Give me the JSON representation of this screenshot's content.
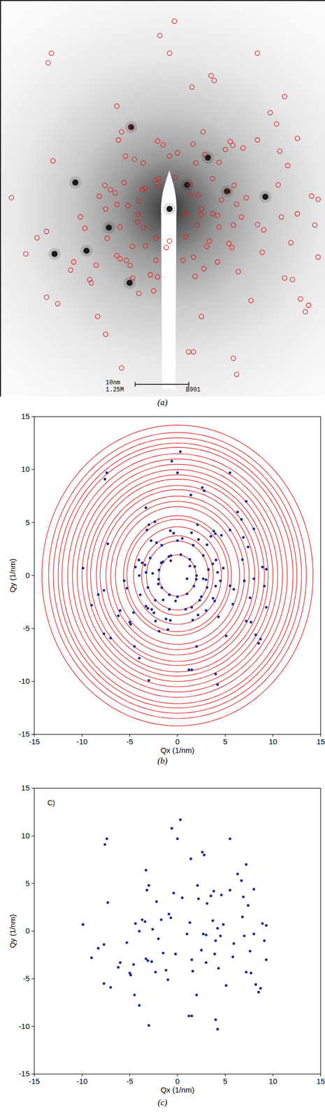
{
  "chart_data": [
    {
      "type": "image",
      "caption": "(a)",
      "marker": "open circle",
      "color": "#e02020",
      "tick_labels": false,
      "grid": false,
      "xlim": [
        -10.6,
        9.75
      ],
      "ylim": [
        -11.7,
        13.0
      ],
      "annotations": [
        "10nm",
        "1.25M",
        "B901"
      ],
      "spots": {
        "x": [
          0,
          -5.9,
          -2.4,
          2.4,
          3.6,
          6.0,
          -3.8,
          -5.2,
          -7.2,
          -2.5,
          1.1
        ],
        "y": [
          0,
          1.65,
          5.1,
          3.2,
          1.1,
          0.76,
          -1.16,
          -2.6,
          -2.8,
          -4.6,
          1.5
        ]
      },
      "x": [
        2,
        1.81,
        1.29,
        0.35,
        -0.68,
        -1.53,
        -1.93,
        -1.97,
        -1.64,
        -0.85,
        0,
        1.0,
        1.73,
        1.97,
        3.25,
        2.7,
        1.65,
        0,
        -1.65,
        -2.86,
        -3.29,
        -3.1,
        -2.33,
        -0.85,
        0.85,
        2.33,
        3.1,
        4.04,
        1.47,
        -0.75,
        -2.76,
        -4.04,
        -3.9,
        -2.47,
        -0.75,
        2.15,
        3.72,
        3.96,
        -2.37,
        -5.58,
        -1.92,
        5.51,
        -9.9,
        -9.0,
        -8.3,
        -7.7,
        -7.6,
        -7.4,
        -7.3,
        -7.0,
        -7.7,
        -6.2,
        -6.0,
        -5.3,
        -5.0,
        -4.9,
        -4.6,
        -4.5,
        -4.0,
        -4.4,
        -4.0,
        -3.7,
        -3.4,
        -3.3,
        -3.2,
        -3.0,
        -3.1,
        -3.3,
        -3.0,
        -2.7,
        -2.6,
        -2.3,
        -2.2,
        -2.0,
        -1.7,
        -1.2,
        -1.5,
        -1.0,
        -0.9,
        -0.7,
        -0.6,
        -0.4,
        0.0,
        0.3,
        0.5,
        -0.2,
        1.2,
        1.5,
        1.0,
        1.5,
        1.4,
        1.3,
        1.6,
        2.0,
        2.2,
        2.1,
        2.6,
        2.8,
        2.7,
        2.5,
        3.0,
        3.1,
        3.0,
        3.5,
        3.8,
        3.7,
        4.0,
        3.9,
        4.0,
        4.2,
        4.6,
        4.2,
        4.3,
        4.5,
        4.8,
        5.1,
        5.5,
        5.5,
        5.8,
        5.9,
        6.3,
        6.7,
        6.8,
        6.9,
        7.0,
        7.2,
        7.4,
        7.2,
        7.7,
        7.6,
        8.0,
        8.0,
        8.2,
        8.5,
        8.7,
        8.9,
        9.3,
        9.1,
        9.3
      ],
      "y": [
        0,
        0.85,
        1.53,
        1.97,
        1.88,
        1.29,
        0.52,
        -0.35,
        -1.15,
        -1.81,
        -2,
        -1.73,
        -1.0,
        -0.35,
        0.57,
        1.89,
        2.86,
        3.3,
        2.86,
        1.65,
        0.29,
        -1.13,
        -2.33,
        -3.19,
        -3.19,
        -2.33,
        -1.13,
        1.47,
        4.04,
        4.23,
        3.29,
        1.47,
        -1.82,
        -3.52,
        -4.23,
        -3.72,
        -2.15,
        3.96,
        5.08,
        -0.49,
        -5.26,
        -0.97,
        0.7,
        -2.8,
        -1.8,
        -1.4,
        9.1,
        9.7,
        3.0,
        -5.9,
        -5.5,
        -3.8,
        -3.3,
        -1.2,
        -4.4,
        -4.6,
        -3.5,
        -6.7,
        -7.8,
        0.8,
        0.0,
        1.2,
        1.0,
        6.4,
        4.3,
        4.8,
        -3.1,
        -2.9,
        -9.9,
        -3.2,
        0.2,
        -4.3,
        3.1,
        -0.8,
        1.2,
        -4.1,
        -2.3,
        -5.1,
        1.8,
        1.4,
        10.8,
        4.0,
        9.7,
        11.7,
        3.5,
        -2.4,
        -8.9,
        -8.9,
        -0.3,
        -3.0,
        7.6,
        0.9,
        -4.2,
        -6.7,
        3.4,
        4.8,
        8.3,
        8.0,
        -0.3,
        -2.0,
        -3.3,
        2.9,
        -0.4,
        3.7,
        4.2,
        1.1,
        -1.0,
        -2.4,
        -9.3,
        -10.3,
        3.8,
        0.3,
        -3.9,
        -0.5,
        0.7,
        -5.7,
        9.7,
        4.3,
        -2.7,
        -1.3,
        6.0,
        5.3,
        1.5,
        3.6,
        -0.5,
        7.0,
        2.7,
        -4.3,
        -4.4,
        -2.1,
        4.4,
        -0.3,
        -5.6,
        -6.4,
        -6.0,
        0.8,
        0.6,
        -1.0,
        -3.0
      ]
    },
    {
      "type": "scatter",
      "caption": "(b)",
      "marker": "dot",
      "color": "#1c2b8c",
      "grid": false,
      "xlabel": "Qx (1/nm)",
      "ylabel": "Qy (1/nm)",
      "xlim": [
        -15,
        15
      ],
      "ylim": [
        -15,
        15
      ],
      "xticks": [
        -15,
        -10,
        -5,
        0,
        5,
        10,
        15
      ],
      "yticks": [
        -15,
        -10,
        -5,
        0,
        5,
        10,
        15
      ],
      "rings": {
        "color": "#e02020",
        "radii": [
          1.95,
          3.25,
          3.75,
          4.6,
          5.3,
          5.65,
          6.5,
          7.0,
          7.5,
          8.1,
          8.5,
          9.1,
          9.5,
          10.0,
          10.5,
          11.0,
          11.5,
          12.1,
          12.5,
          13.0,
          13.5,
          14.2
        ]
      },
      "x": [
        2,
        1.81,
        1.29,
        0.35,
        -0.68,
        -1.53,
        -1.93,
        -1.97,
        -1.64,
        -0.85,
        0,
        1.0,
        1.73,
        1.97,
        3.25,
        2.7,
        1.65,
        0,
        -1.65,
        -2.86,
        -3.29,
        -3.1,
        -2.33,
        -0.85,
        0.85,
        2.33,
        3.1,
        4.04,
        1.47,
        -0.75,
        -2.76,
        -4.04,
        -3.9,
        -2.47,
        -0.75,
        2.15,
        3.72,
        3.96,
        -2.37,
        -5.58,
        -1.92,
        5.51,
        -9.9,
        -9.0,
        -8.3,
        -7.7,
        -7.6,
        -7.4,
        -7.3,
        -7.0,
        -7.7,
        -6.2,
        -6.0,
        -5.3,
        -5.0,
        -4.9,
        -4.6,
        -4.5,
        -4.0,
        -4.4,
        -4.0,
        -3.7,
        -3.4,
        -3.3,
        -3.2,
        -3.0,
        -3.1,
        -3.3,
        -3.0,
        -2.7,
        -2.6,
        -2.3,
        -2.2,
        -2.0,
        -1.7,
        -1.2,
        -1.5,
        -1.0,
        -0.9,
        -0.7,
        -0.6,
        -0.4,
        0.0,
        0.3,
        0.5,
        -0.2,
        1.2,
        1.5,
        1.0,
        1.5,
        1.4,
        1.3,
        1.6,
        2.0,
        2.2,
        2.1,
        2.6,
        2.8,
        2.7,
        2.5,
        3.0,
        3.1,
        3.0,
        3.5,
        3.8,
        3.7,
        4.0,
        3.9,
        4.0,
        4.2,
        4.6,
        4.2,
        4.3,
        4.5,
        4.8,
        5.1,
        5.5,
        5.5,
        5.8,
        5.9,
        6.3,
        6.7,
        6.8,
        6.9,
        7.0,
        7.2,
        7.4,
        7.2,
        7.7,
        7.6,
        8.0,
        8.0,
        8.2,
        8.5,
        8.7,
        8.9,
        9.3,
        9.1,
        9.3
      ],
      "y": [
        0,
        0.85,
        1.53,
        1.97,
        1.88,
        1.29,
        0.52,
        -0.35,
        -1.15,
        -1.81,
        -2,
        -1.73,
        -1.0,
        -0.35,
        0.57,
        1.89,
        2.86,
        3.3,
        2.86,
        1.65,
        0.29,
        -1.13,
        -2.33,
        -3.19,
        -3.19,
        -2.33,
        -1.13,
        1.47,
        4.04,
        4.23,
        3.29,
        1.47,
        -1.82,
        -3.52,
        -4.23,
        -3.72,
        -2.15,
        3.96,
        5.08,
        -0.49,
        -5.26,
        -0.97,
        0.7,
        -2.8,
        -1.8,
        -1.4,
        9.1,
        9.7,
        3.0,
        -5.9,
        -5.5,
        -3.8,
        -3.3,
        -1.2,
        -4.4,
        -4.6,
        -3.5,
        -6.7,
        -7.8,
        0.8,
        0.0,
        1.2,
        1.0,
        6.4,
        4.3,
        4.8,
        -3.1,
        -2.9,
        -9.9,
        -3.2,
        0.2,
        -4.3,
        3.1,
        -0.8,
        1.2,
        -4.1,
        -2.3,
        -5.1,
        1.8,
        1.4,
        10.8,
        4.0,
        9.7,
        11.7,
        3.5,
        -2.4,
        -8.9,
        -8.9,
        -0.3,
        -3.0,
        7.6,
        0.9,
        -4.2,
        -6.7,
        3.4,
        4.8,
        8.3,
        8.0,
        -0.3,
        -2.0,
        -3.3,
        2.9,
        -0.4,
        3.7,
        4.2,
        1.1,
        -1.0,
        -2.4,
        -9.3,
        -10.3,
        3.8,
        0.3,
        -3.9,
        -0.5,
        0.7,
        -5.7,
        9.7,
        4.3,
        -2.7,
        -1.3,
        6.0,
        5.3,
        1.5,
        3.6,
        -0.5,
        7.0,
        2.7,
        -4.3,
        -4.4,
        -2.1,
        4.4,
        -0.3,
        -5.6,
        -6.4,
        -6.0,
        0.8,
        0.6,
        -1.0,
        -3.0
      ]
    },
    {
      "type": "scatter",
      "caption": "(c)",
      "annotation": "C)",
      "marker": "dot",
      "color": "#1c2b8c",
      "grid": false,
      "xlabel": "Qx (1/nm)",
      "ylabel": "Qy (1/nm)",
      "xlim": [
        -15,
        15
      ],
      "ylim": [
        -15,
        15
      ],
      "xticks": [
        -15,
        -10,
        -5,
        0,
        5,
        10,
        15
      ],
      "yticks": [
        -15,
        -10,
        -5,
        0,
        5,
        10,
        15
      ],
      "x": [
        -9.9,
        -9.0,
        -8.3,
        -7.7,
        -7.6,
        -7.4,
        -7.3,
        -7.0,
        -7.7,
        -6.2,
        -6.0,
        -5.3,
        -5.0,
        -4.9,
        -4.6,
        -4.5,
        -4.0,
        -4.4,
        -4.0,
        -3.7,
        -3.4,
        -3.3,
        -3.2,
        -3.0,
        -3.1,
        -3.3,
        -3.0,
        -2.7,
        -2.6,
        -2.3,
        -2.2,
        -2.0,
        -1.7,
        -1.2,
        -1.5,
        -1.0,
        -0.9,
        -0.7,
        -0.6,
        -0.4,
        0.0,
        0.3,
        0.5,
        -0.2,
        1.2,
        1.5,
        1.0,
        1.5,
        1.4,
        1.3,
        1.6,
        2.0,
        2.2,
        2.1,
        2.6,
        2.8,
        2.7,
        2.5,
        3.0,
        3.1,
        3.0,
        3.5,
        3.8,
        3.7,
        4.0,
        3.9,
        4.0,
        4.2,
        4.6,
        4.2,
        4.3,
        4.5,
        4.8,
        5.1,
        5.5,
        5.5,
        5.8,
        5.9,
        6.3,
        6.7,
        6.8,
        6.9,
        7.0,
        7.2,
        7.4,
        7.2,
        7.7,
        7.6,
        8.0,
        8.0,
        8.2,
        8.5,
        8.7,
        8.9,
        9.3,
        9.1,
        9.3
      ],
      "y": [
        0.7,
        -2.8,
        -1.8,
        -1.4,
        9.1,
        9.7,
        3.0,
        -5.9,
        -5.5,
        -3.8,
        -3.3,
        -1.2,
        -4.4,
        -4.6,
        -3.5,
        -6.7,
        -7.8,
        0.8,
        0.0,
        1.2,
        1.0,
        6.4,
        4.3,
        4.8,
        -3.1,
        -2.9,
        -9.9,
        -3.2,
        0.2,
        -4.3,
        3.1,
        -0.8,
        1.2,
        -4.1,
        -2.3,
        -5.1,
        1.8,
        1.4,
        10.8,
        4.0,
        9.7,
        11.7,
        3.5,
        -2.4,
        -8.9,
        -8.9,
        -0.3,
        -3.0,
        7.6,
        0.9,
        -4.2,
        -6.7,
        3.4,
        4.8,
        8.3,
        8.0,
        -0.3,
        -2.0,
        -3.3,
        2.9,
        -0.4,
        3.7,
        4.2,
        1.1,
        -1.0,
        -2.4,
        -9.3,
        -10.3,
        3.8,
        0.3,
        -3.9,
        -0.5,
        0.7,
        -5.7,
        9.7,
        4.3,
        -2.7,
        -1.3,
        6.0,
        5.3,
        1.5,
        3.6,
        -0.5,
        7.0,
        2.7,
        -4.3,
        -4.4,
        -2.1,
        4.4,
        -0.3,
        -5.6,
        -6.4,
        -6.0,
        0.8,
        0.6,
        -1.0,
        -3.0
      ]
    }
  ]
}
